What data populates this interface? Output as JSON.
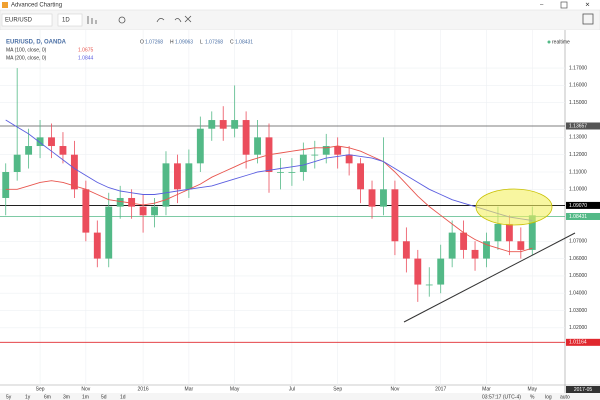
{
  "window": {
    "title": "Advanced Charting"
  },
  "toolbar": {
    "symbol": "EUR/USD",
    "interval": "1D"
  },
  "header": {
    "symbol_line": "EUR/USD, D, OANDA",
    "realtime": "realtime",
    "ohlc": [
      {
        "key": "O",
        "value": "1.07268"
      },
      {
        "key": "H",
        "value": "1.09063"
      },
      {
        "key": "L",
        "value": "1.07268"
      },
      {
        "key": "C",
        "value": "1.08431"
      }
    ]
  },
  "chart_data": {
    "type": "candlestick",
    "categories": [
      null,
      null,
      null,
      "Sep",
      null,
      null,
      null,
      "Nov",
      null,
      null,
      null,
      null,
      "2016",
      null,
      null,
      null,
      "Mar",
      null,
      null,
      null,
      "May",
      null,
      null,
      null,
      null,
      "Jul",
      null,
      null,
      null,
      "Sep",
      null,
      null,
      null,
      null,
      "Nov",
      null,
      null,
      null,
      "2017",
      null,
      null,
      null,
      "Mar",
      null,
      null,
      null,
      "May"
    ],
    "open": [
      1.095,
      1.11,
      1.12,
      1.125,
      1.13,
      1.125,
      1.12,
      1.1,
      1.075,
      1.06,
      1.09,
      1.095,
      1.09,
      1.085,
      1.09,
      1.115,
      1.1,
      1.115,
      1.135,
      1.14,
      1.135,
      1.14,
      1.12,
      1.13,
      1.11,
      1.11,
      1.11,
      1.12,
      1.12,
      1.125,
      1.12,
      1.115,
      1.1,
      1.09,
      1.1,
      1.07,
      1.06,
      1.045,
      1.045,
      1.06,
      1.075,
      1.065,
      1.06,
      1.07,
      1.08,
      1.07,
      1.065
    ],
    "high": [
      1.115,
      1.17,
      1.135,
      1.14,
      1.138,
      1.133,
      1.128,
      1.105,
      1.082,
      1.098,
      1.102,
      1.1,
      1.097,
      1.095,
      1.122,
      1.12,
      1.123,
      1.142,
      1.145,
      1.148,
      1.16,
      1.145,
      1.14,
      1.138,
      1.118,
      1.118,
      1.127,
      1.128,
      1.132,
      1.13,
      1.125,
      1.118,
      1.105,
      1.13,
      1.105,
      1.078,
      1.065,
      1.055,
      1.068,
      1.082,
      1.082,
      1.07,
      1.075,
      1.09,
      1.085,
      1.078,
      1.09
    ],
    "low": [
      1.085,
      1.105,
      1.112,
      1.118,
      1.118,
      1.115,
      1.095,
      1.07,
      1.055,
      1.055,
      1.083,
      1.083,
      1.075,
      1.078,
      1.085,
      1.092,
      1.095,
      1.11,
      1.128,
      1.128,
      1.13,
      1.112,
      1.115,
      1.098,
      1.1,
      1.102,
      1.105,
      1.112,
      1.115,
      1.112,
      1.108,
      1.092,
      1.083,
      1.085,
      1.062,
      1.052,
      1.035,
      1.038,
      1.04,
      1.055,
      1.06,
      1.053,
      1.055,
      1.065,
      1.062,
      1.06,
      1.062
    ],
    "close": [
      1.11,
      1.12,
      1.125,
      1.13,
      1.125,
      1.12,
      1.1,
      1.075,
      1.06,
      1.09,
      1.095,
      1.09,
      1.085,
      1.09,
      1.115,
      1.1,
      1.115,
      1.135,
      1.14,
      1.135,
      1.14,
      1.12,
      1.13,
      1.11,
      1.11,
      1.11,
      1.12,
      1.12,
      1.125,
      1.12,
      1.115,
      1.1,
      1.09,
      1.1,
      1.07,
      1.06,
      1.045,
      1.045,
      1.06,
      1.075,
      1.065,
      1.06,
      1.07,
      1.08,
      1.07,
      1.065,
      1.085
    ],
    "up_color": "#53b987",
    "down_color": "#eb4d5c",
    "series": [
      {
        "name": "MA (100, close, 0)",
        "current": "1.0675",
        "color": "#e8554e",
        "values": [
          1.1,
          1.1,
          1.102,
          1.104,
          1.105,
          1.104,
          1.102,
          1.1,
          1.097,
          1.094,
          1.093,
          1.092,
          1.091,
          1.092,
          1.094,
          1.097,
          1.1,
          1.103,
          1.107,
          1.11,
          1.113,
          1.116,
          1.118,
          1.12,
          1.121,
          1.122,
          1.123,
          1.124,
          1.124,
          1.125,
          1.124,
          1.122,
          1.119,
          1.116,
          1.11,
          1.103,
          1.096,
          1.09,
          1.085,
          1.08,
          1.075,
          1.071,
          1.068,
          1.066,
          1.064,
          1.064,
          1.066
        ]
      },
      {
        "name": "MA (200, close, 0)",
        "current": "1.0844",
        "color": "#5b5ee0",
        "values": [
          1.14,
          1.136,
          1.132,
          1.127,
          1.122,
          1.117,
          1.112,
          1.108,
          1.104,
          1.101,
          1.099,
          1.098,
          1.097,
          1.097,
          1.098,
          1.099,
          1.1,
          1.101,
          1.102,
          1.104,
          1.106,
          1.108,
          1.11,
          1.111,
          1.112,
          1.113,
          1.114,
          1.116,
          1.118,
          1.119,
          1.12,
          1.119,
          1.118,
          1.116,
          1.112,
          1.108,
          1.104,
          1.1,
          1.097,
          1.094,
          1.092,
          1.09,
          1.088,
          1.086,
          1.084,
          1.083,
          1.082
        ]
      }
    ],
    "levels": [
      {
        "value": 1.13657,
        "label": "1.13657",
        "color": "#555555"
      },
      {
        "value": 1.0907,
        "label": "1.09070",
        "color": "#000000"
      },
      {
        "value": 1.08431,
        "label": "1.08431",
        "color": "#53b987"
      },
      {
        "value": 1.01164,
        "label": "1.01164",
        "color": "#e0282e"
      }
    ],
    "ylim": [
      0.987,
      1.192
    ],
    "yticks": [
      {
        "value": 1.02,
        "label": "1.02000"
      },
      {
        "value": 1.03,
        "label": "1.03000"
      },
      {
        "value": 1.04,
        "label": "1.04000"
      },
      {
        "value": 1.05,
        "label": "1.05000"
      },
      {
        "value": 1.06,
        "label": "1.06000"
      },
      {
        "value": 1.07,
        "label": "1.07000"
      },
      {
        "value": 1.1,
        "label": "1.10000"
      },
      {
        "value": 1.11,
        "label": "1.11000"
      },
      {
        "value": 1.12,
        "label": "1.12000"
      },
      {
        "value": 1.13,
        "label": "1.13000"
      },
      {
        "value": 1.15,
        "label": "1.15000"
      },
      {
        "value": 1.16,
        "label": "1.16000"
      },
      {
        "value": 1.17,
        "label": "1.17000"
      }
    ],
    "grid": true,
    "time_highlight": "2017-05"
  },
  "bottom_bar": {
    "ranges": [
      "5y",
      "1y",
      "6m",
      "3m",
      "1m",
      "5d",
      "1d"
    ],
    "clock": "03:57:17 (UTC-4)",
    "options": [
      "%",
      "log",
      "auto"
    ]
  }
}
